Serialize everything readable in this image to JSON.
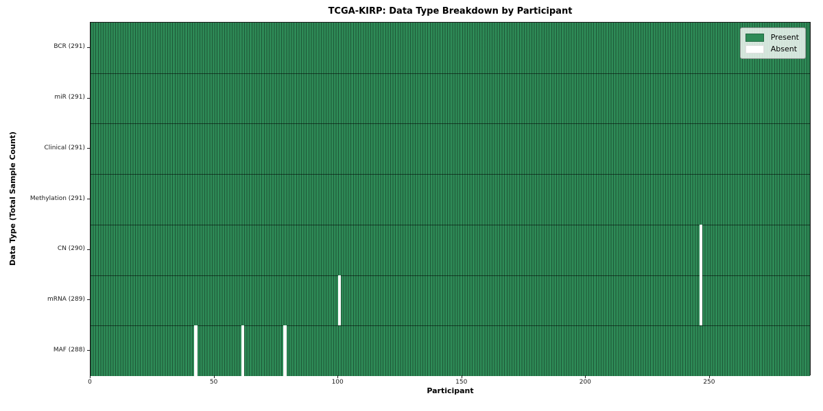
{
  "title": "TCGA-KIRP: Data Type Breakdown by Participant",
  "chart_data": {
    "type": "heatmap",
    "title": "TCGA-KIRP: Data Type Breakdown by Participant",
    "xlabel": "Participant",
    "ylabel": "Data Type (Total Sample Count)",
    "n_participants": 291,
    "x_ticks": [
      0,
      50,
      100,
      150,
      200,
      250
    ],
    "x_range": [
      0,
      291
    ],
    "grid": false,
    "legend_position": "upper right",
    "colors": {
      "present": "#2e8b57",
      "absent": "#ffffff"
    },
    "legend": [
      {
        "label": "Present",
        "color": "#2e8b57"
      },
      {
        "label": "Absent",
        "color": "#ffffff"
      }
    ],
    "rows": [
      {
        "label": "BCR (291)",
        "data_type": "BCR",
        "total_samples": 291,
        "absent_participants": []
      },
      {
        "label": "miR (291)",
        "data_type": "miR",
        "total_samples": 291,
        "absent_participants": []
      },
      {
        "label": "Clinical (291)",
        "data_type": "Clinical",
        "total_samples": 291,
        "absent_participants": []
      },
      {
        "label": "Methylation (291)",
        "data_type": "Methylation",
        "total_samples": 291,
        "absent_participants": []
      },
      {
        "label": "CN (290)",
        "data_type": "CN",
        "total_samples": 290,
        "absent_participants": [
          246
        ]
      },
      {
        "label": "mRNA (289)",
        "data_type": "mRNA",
        "total_samples": 289,
        "absent_participants": [
          100,
          246
        ]
      },
      {
        "label": "MAF (288)",
        "data_type": "MAF",
        "total_samples": 288,
        "absent_participants": [
          42,
          61,
          78
        ]
      }
    ]
  }
}
